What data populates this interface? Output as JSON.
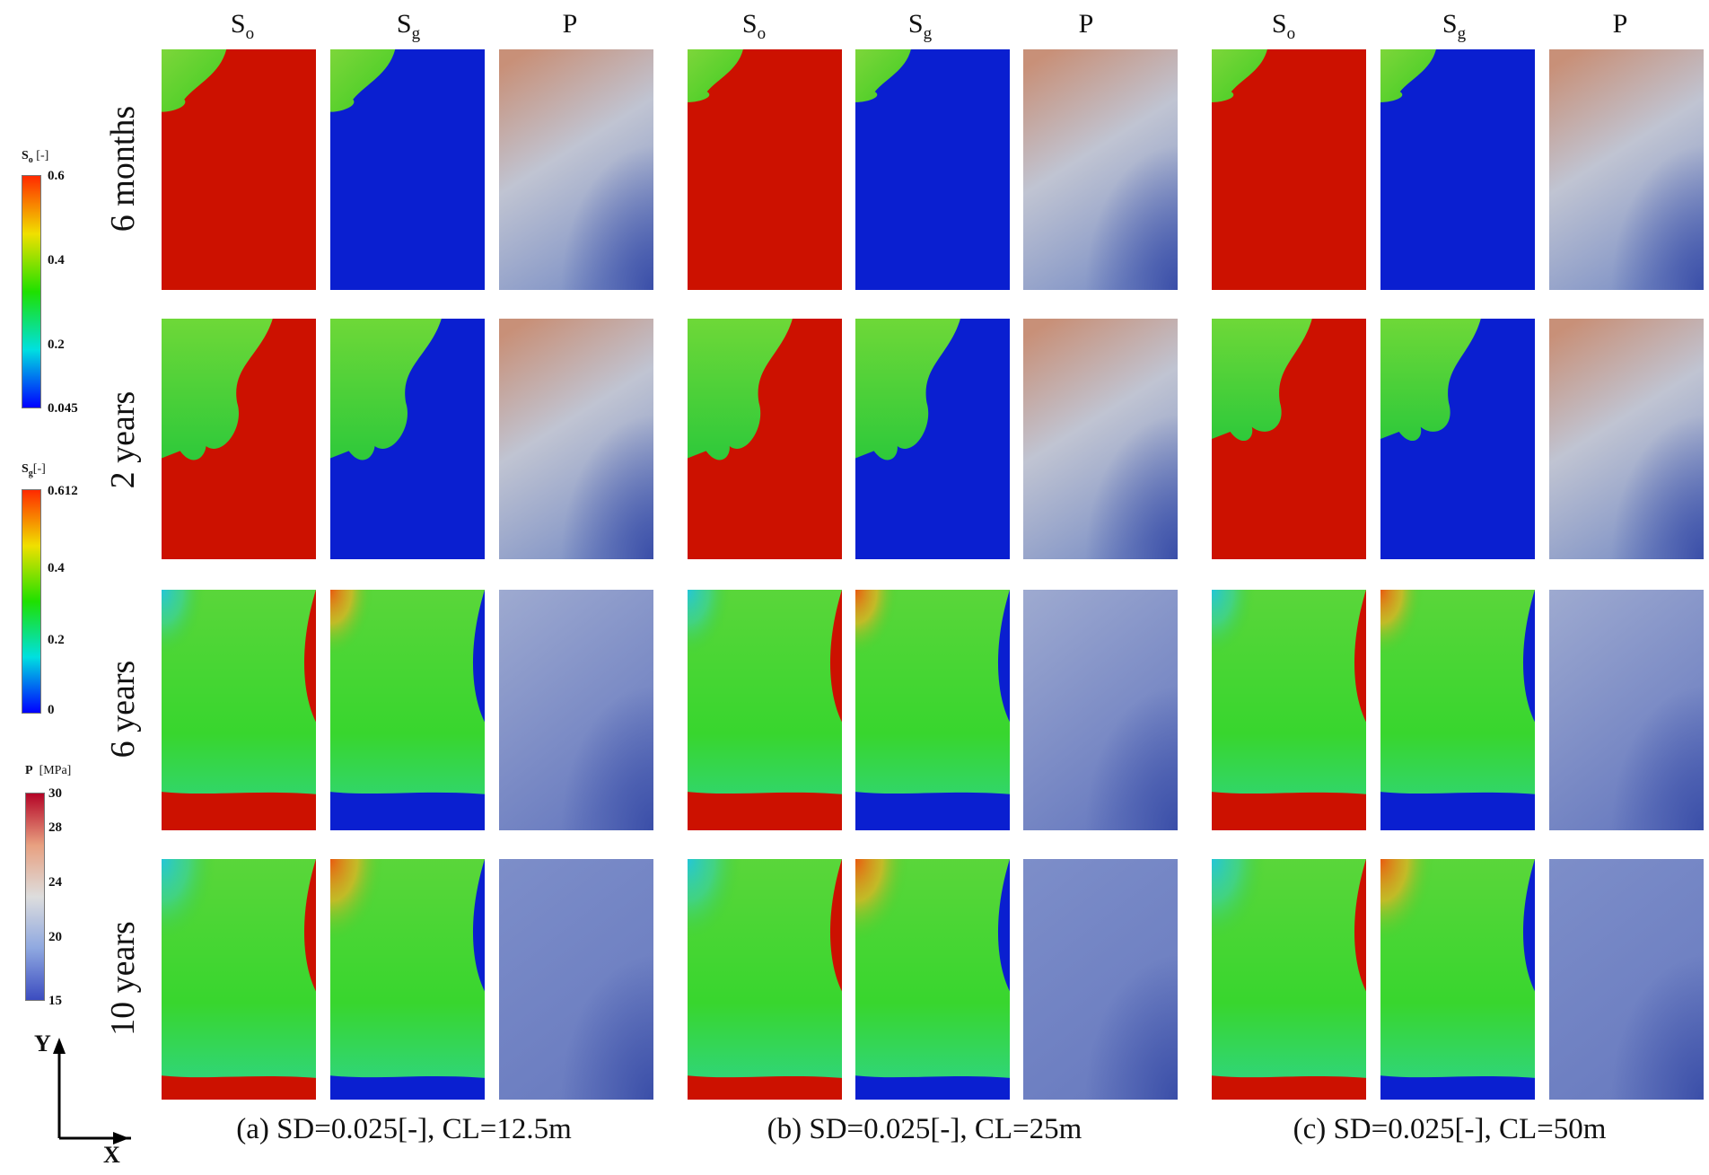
{
  "columns": {
    "group_a": [
      "S",
      "S",
      "P"
    ],
    "subscripts": [
      "o",
      "g",
      ""
    ]
  },
  "row_labels": [
    "6 months",
    "2 years",
    "6 years",
    "10 years"
  ],
  "captions": [
    "(a) SD=0.025[-], CL=12.5m",
    "(b) SD=0.025[-], CL=25m",
    "(c) SD=0.025[-], CL=50m"
  ],
  "colorbars": {
    "so": {
      "symbol": "S",
      "sub": "o",
      "unit": "[-]",
      "ticks": [
        "0.6",
        "0.4",
        "0.2",
        "0.045"
      ],
      "colors": [
        "#ff2a00",
        "#f0e000",
        "#1fe000",
        "#00e0e0",
        "#0000ff"
      ]
    },
    "sg": {
      "symbol": "S",
      "sub": "g",
      "unit": "[-]",
      "ticks": [
        "0.612",
        "0.4",
        "0.2",
        "0"
      ],
      "colors": [
        "#ff2a00",
        "#f0e000",
        "#1fe000",
        "#00e0e0",
        "#0000ff"
      ]
    },
    "p": {
      "symbol": "P",
      "unit": "[MPa]",
      "ticks": [
        "30",
        "28",
        "24",
        "20",
        "15"
      ],
      "colors": [
        "#b40426",
        "#e8a080",
        "#dddddd",
        "#8fa8e0",
        "#3b4cc0"
      ]
    }
  },
  "axes": {
    "y": "Y",
    "x": "X"
  },
  "field_colors": {
    "oil_red": "#cc1100",
    "gas_blue": "#0a1fd0",
    "mixed_green": "#33cc22",
    "pressure_high": "#c89078",
    "pressure_mid": "#c0c4d2",
    "pressure_low": "#3a4ea8"
  }
}
